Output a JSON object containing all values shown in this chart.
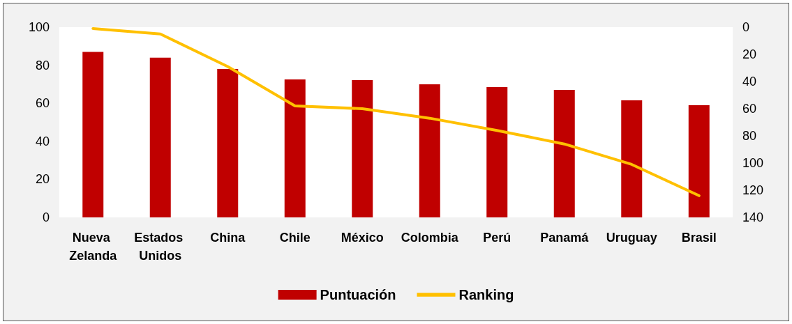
{
  "chart_data": {
    "type": "bar",
    "categories": [
      "Nueva Zelanda",
      "Estados Unidos",
      "China",
      "Chile",
      "México",
      "Colombia",
      "Perú",
      "Panamá",
      "Uruguay",
      "Brasil"
    ],
    "series": [
      {
        "name": "Puntuación",
        "color": "#c00000",
        "values": [
          87,
          84,
          78,
          72.5,
          72.2,
          70,
          68.5,
          67,
          61.5,
          59
        ]
      },
      {
        "name": "Ranking",
        "type": "line",
        "axis": "y2",
        "color": "#ffc000",
        "values": [
          1,
          5,
          29,
          58,
          60,
          67,
          76,
          86,
          101,
          124
        ]
      }
    ],
    "ylim": [
      0,
      100
    ],
    "yticks": [
      0,
      20,
      40,
      60,
      80,
      100
    ],
    "y2lim": [
      140,
      0
    ],
    "y2ticks": [
      0,
      20,
      40,
      60,
      80,
      100,
      120,
      140
    ],
    "grid": false,
    "legend": "bottom",
    "marker": "none",
    "line_style": "solid"
  }
}
